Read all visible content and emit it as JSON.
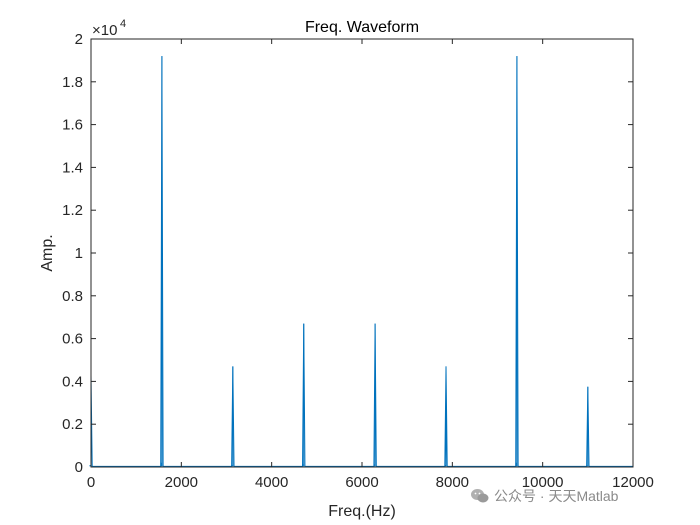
{
  "chart_data": {
    "type": "line",
    "title": "Freq. Waveform",
    "xlabel": "Freq.(Hz)",
    "ylabel": "Amp.",
    "exponent_label": "×10",
    "exponent_power": "4",
    "xlim": [
      0,
      12000
    ],
    "ylim": [
      0,
      2
    ],
    "y_scale_factor": 10000,
    "x_ticks": [
      0,
      2000,
      4000,
      6000,
      8000,
      10000,
      12000
    ],
    "x_tick_labels": [
      "0",
      "2000",
      "4000",
      "6000",
      "8000",
      "10000",
      "12000"
    ],
    "y_ticks": [
      0,
      0.2,
      0.4,
      0.6,
      0.8,
      1,
      1.2,
      1.4,
      1.6,
      1.8,
      2
    ],
    "y_tick_labels": [
      "0",
      "0.2",
      "0.4",
      "0.6",
      "0.8",
      "1",
      "1.2",
      "1.4",
      "1.6",
      "1.8",
      "2"
    ],
    "grid": false,
    "series": [
      {
        "color": "#0072BD",
        "peaks": [
          {
            "x": 0,
            "y": 0.43
          },
          {
            "x": 1570,
            "y": 1.92
          },
          {
            "x": 3140,
            "y": 0.47
          },
          {
            "x": 4710,
            "y": 0.67
          },
          {
            "x": 6290,
            "y": 0.67
          },
          {
            "x": 7860,
            "y": 0.47
          },
          {
            "x": 9430,
            "y": 1.92
          },
          {
            "x": 11000,
            "y": 0.375
          }
        ]
      }
    ]
  },
  "watermark": {
    "text": "公众号 · 天天Matlab",
    "icon": "wechat-icon"
  }
}
